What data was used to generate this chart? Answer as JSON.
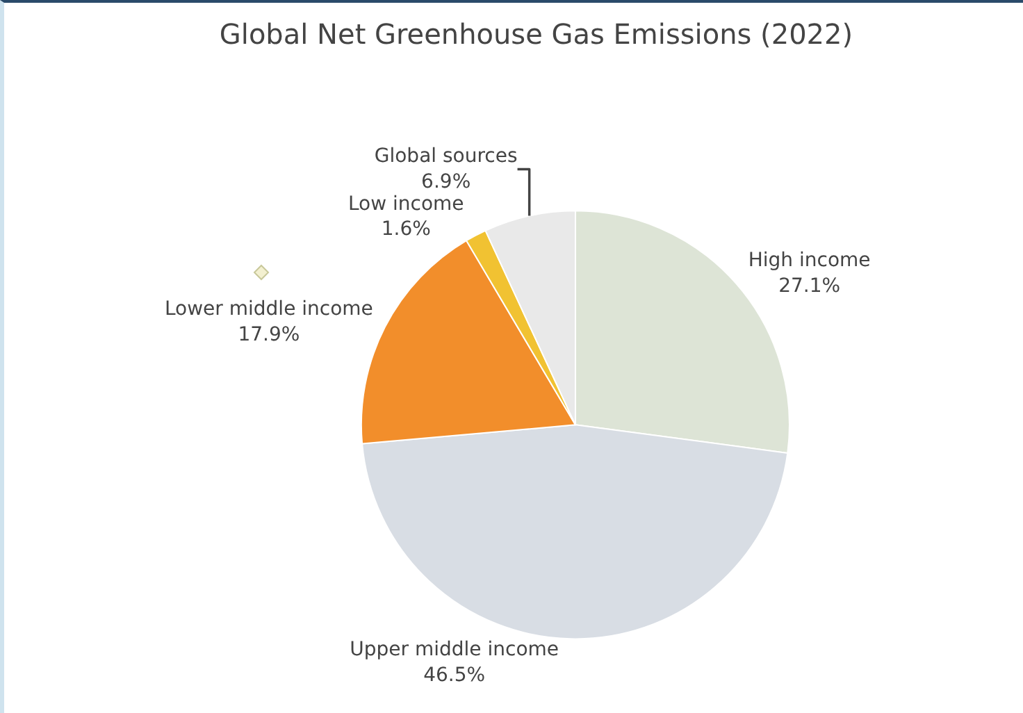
{
  "chart_data": {
    "type": "pie",
    "title": "Global Net Greenhouse Gas Emissions (2022)",
    "categories": [
      "High income",
      "Upper middle income",
      "Lower middle income",
      "Low income",
      "Global sources"
    ],
    "values": [
      27.1,
      46.5,
      17.9,
      1.6,
      6.9
    ],
    "colors": [
      "#dde4d6",
      "#d8dde4",
      "#f28e2b",
      "#f1c232",
      "#e9e9e9"
    ],
    "value_labels": [
      "27.1%",
      "46.5%",
      "17.9%",
      "1.6%",
      "6.9%"
    ],
    "legend": false
  }
}
